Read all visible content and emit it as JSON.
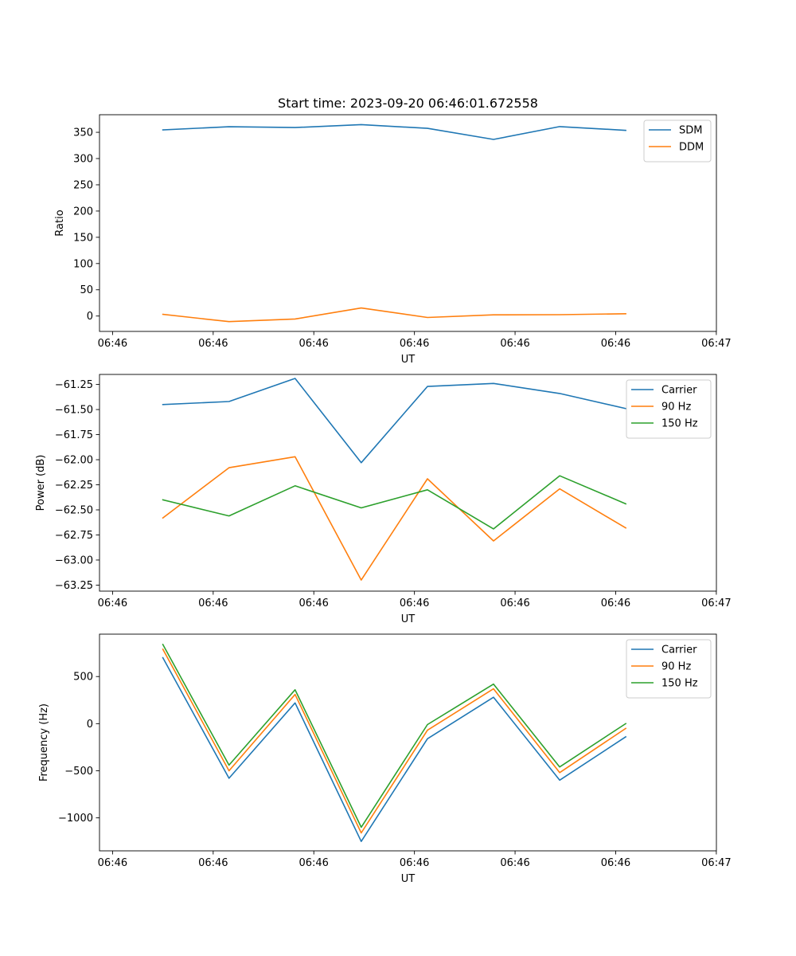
{
  "title": "Start time: 2023-09-20 06:46:01.672558",
  "chart_data": [
    {
      "type": "line",
      "title": "Start time: 2023-09-20 06:46:01.672558",
      "xlabel": "UT",
      "ylabel": "Ratio",
      "x": [
        0.5,
        1.157,
        1.814,
        2.471,
        3.129,
        3.786,
        4.443,
        5.1
      ],
      "xlim": [
        0,
        6
      ],
      "xticks": [
        0,
        1,
        2,
        3,
        4,
        5,
        6
      ],
      "xtick_labels": [
        "06:46",
        "06:46",
        "06:46",
        "06:46",
        "06:46",
        "06:46",
        "06:47"
      ],
      "ylim": [
        -29.3,
        383.5
      ],
      "yticks": [
        0,
        50,
        100,
        150,
        200,
        250,
        300,
        350
      ],
      "ytick_labels": [
        "0",
        "50",
        "100",
        "150",
        "200",
        "250",
        "300",
        "350"
      ],
      "legend_position": "top-right",
      "series": [
        {
          "name": "SDM",
          "color": "#1f77b4",
          "values": [
            354.6,
            360.6,
            359.1,
            364.7,
            357.6,
            336.5,
            360.9,
            353.8
          ]
        },
        {
          "name": "DDM",
          "color": "#ff7f0e",
          "values": [
            3.2,
            -10.6,
            -5.6,
            15.3,
            -2.7,
            2.2,
            2.6,
            4.4
          ]
        }
      ]
    },
    {
      "type": "line",
      "xlabel": "UT",
      "ylabel": "Power (dB)",
      "x": [
        0.5,
        1.157,
        1.814,
        2.471,
        3.129,
        3.786,
        4.443,
        5.1
      ],
      "xlim": [
        0,
        6
      ],
      "xticks": [
        0,
        1,
        2,
        3,
        4,
        5,
        6
      ],
      "xtick_labels": [
        "06:46",
        "06:46",
        "06:46",
        "06:46",
        "06:46",
        "06:46",
        "06:47"
      ],
      "ylim": [
        -63.31,
        -61.15
      ],
      "yticks": [
        -63.25,
        -63.0,
        -62.75,
        -62.5,
        -62.25,
        -62.0,
        -61.75,
        -61.5,
        -61.25
      ],
      "ytick_labels": [
        "−63.25",
        "−63.00",
        "−62.75",
        "−62.50",
        "−62.25",
        "−62.00",
        "−61.75",
        "−61.50",
        "−61.25"
      ],
      "legend_position": "top-right",
      "series": [
        {
          "name": "Carrier",
          "color": "#1f77b4",
          "values": [
            -61.45,
            -61.42,
            -61.19,
            -62.03,
            -61.27,
            -61.24,
            -61.34,
            -61.49
          ]
        },
        {
          "name": "90 Hz",
          "color": "#ff7f0e",
          "values": [
            -62.58,
            -62.08,
            -61.97,
            -63.2,
            -62.19,
            -62.81,
            -62.29,
            -62.68
          ]
        },
        {
          "name": "150 Hz",
          "color": "#2ca02c",
          "values": [
            -62.4,
            -62.56,
            -62.26,
            -62.48,
            -62.3,
            -62.69,
            -62.16,
            -62.44
          ]
        }
      ]
    },
    {
      "type": "line",
      "xlabel": "UT",
      "ylabel": "Frequency (Hz)",
      "x": [
        0.5,
        1.157,
        1.814,
        2.471,
        3.129,
        3.786,
        4.443,
        5.1
      ],
      "xlim": [
        0,
        6
      ],
      "xticks": [
        0,
        1,
        2,
        3,
        4,
        5,
        6
      ],
      "xtick_labels": [
        "06:46",
        "06:46",
        "06:46",
        "06:46",
        "06:46",
        "06:46",
        "06:47"
      ],
      "ylim": [
        -1350,
        950
      ],
      "yticks": [
        -1000,
        -500,
        0,
        500
      ],
      "ytick_labels": [
        "−1000",
        "−500",
        "0",
        "500"
      ],
      "legend_position": "top-right",
      "series": [
        {
          "name": "Carrier",
          "color": "#1f77b4",
          "values": [
            700,
            -580,
            220,
            -1250,
            -160,
            280,
            -600,
            -140
          ]
        },
        {
          "name": "90 Hz",
          "color": "#ff7f0e",
          "values": [
            790,
            -500,
            310,
            -1160,
            -70,
            370,
            -520,
            -50
          ]
        },
        {
          "name": "150 Hz",
          "color": "#2ca02c",
          "values": [
            840,
            -440,
            360,
            -1100,
            -10,
            420,
            -460,
            0
          ]
        }
      ]
    }
  ]
}
